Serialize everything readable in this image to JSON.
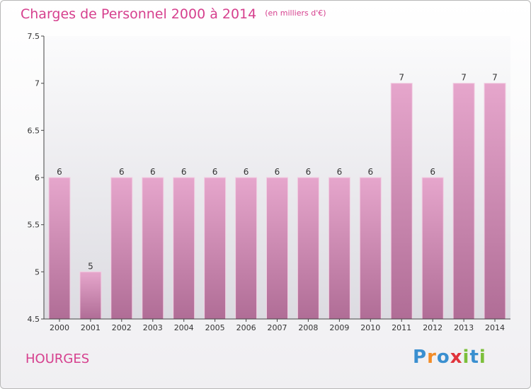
{
  "title": "Charges de Personnel 2000 à 2014",
  "unit_note": "(en milliers d'€)",
  "commune": "HOURGES",
  "logo": {
    "text": "Proxiti",
    "letters": [
      "P",
      "r",
      "o",
      "x",
      "i",
      "t",
      "i"
    ],
    "letter_colors": [
      "#3a8fd0",
      "#f28c28",
      "#3a8fd0",
      "#e0343c",
      "#7cbf3a",
      "#3a8fd0",
      "#7cbf3a"
    ]
  },
  "colors": {
    "bar_top": "#e6a6cc",
    "bar_bottom": "#b06d96",
    "plot_bg_top": "#fbfbfc",
    "plot_bg_bottom": "#dcdbe1",
    "title": "#d6408e"
  },
  "chart_data": {
    "type": "bar",
    "title": "Charges de Personnel 2000 à 2014",
    "categories": [
      "2000",
      "2001",
      "2002",
      "2003",
      "2004",
      "2005",
      "2006",
      "2007",
      "2008",
      "2009",
      "2010",
      "2011",
      "2012",
      "2013",
      "2014"
    ],
    "values": [
      6,
      5,
      6,
      6,
      6,
      6,
      6,
      6,
      6,
      6,
      6,
      7,
      6,
      7,
      7
    ],
    "data_labels": [
      "6",
      "5",
      "6",
      "6",
      "6",
      "6",
      "6",
      "6",
      "6",
      "6",
      "6",
      "7",
      "6",
      "7",
      "7"
    ],
    "xlabel": "",
    "ylabel": "",
    "ylim": [
      4.5,
      7.5
    ],
    "yticks": [
      4.5,
      5,
      5.5,
      6,
      6.5,
      7,
      7.5
    ],
    "ytick_labels": [
      "4.5",
      "5",
      "5.5",
      "6",
      "6.5",
      "7",
      "7.5"
    ],
    "grid": false,
    "legend": "none"
  }
}
